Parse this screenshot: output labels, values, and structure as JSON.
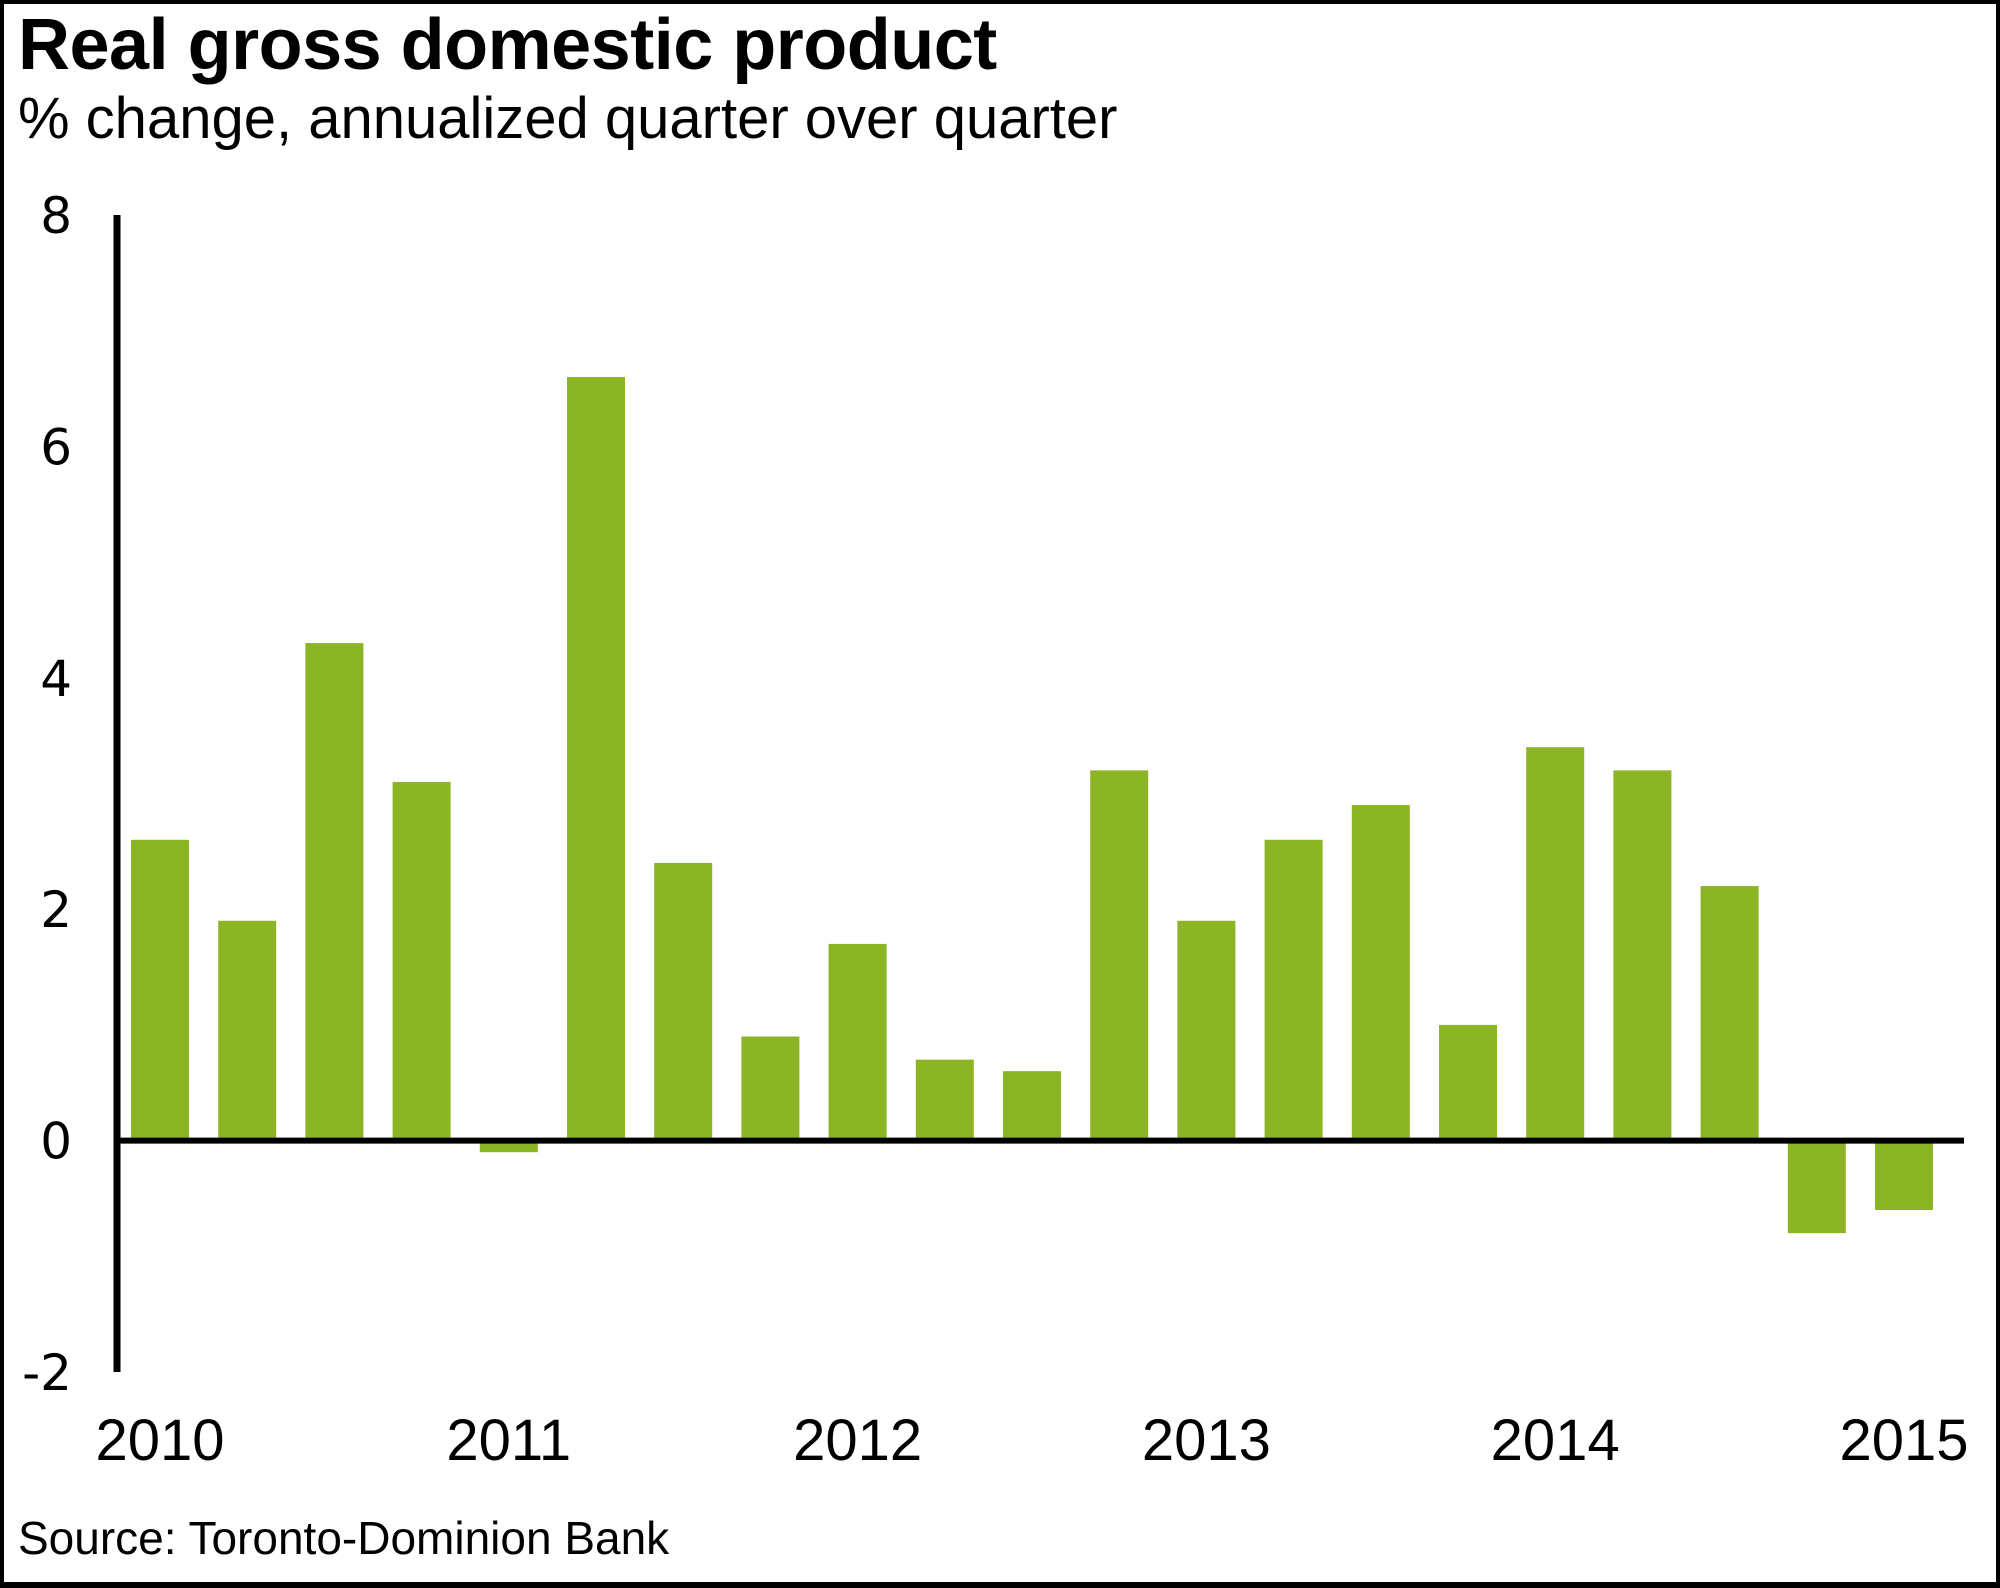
{
  "title": "Real gross domestic product",
  "subtitle": "% change, annualized quarter over quarter",
  "source": "Source: Toronto-Dominion Bank",
  "colors": {
    "bar": "#8bb524",
    "axis": "#000000"
  },
  "chart_data": {
    "type": "bar",
    "title": "Real gross domestic product",
    "subtitle": "% change, annualized quarter over quarter",
    "xlabel": "",
    "ylabel": "",
    "ylim": [
      -2,
      8
    ],
    "yticks": [
      8,
      6,
      4,
      2,
      0,
      -2
    ],
    "ytick_labels": [
      "8",
      "6",
      "4",
      "2",
      "0",
      "-2"
    ],
    "xtick_labels": [
      "2010",
      "2011",
      "2012",
      "2013",
      "2014",
      "2015"
    ],
    "xtick_positions": [
      0,
      4,
      8,
      12,
      16,
      20
    ],
    "grid": false,
    "legend": "none",
    "categories": [
      "2010 Q1",
      "2010 Q2",
      "2010 Q3",
      "2010 Q4",
      "2011 Q1",
      "2011 Q2",
      "2011 Q3",
      "2011 Q4",
      "2012 Q1",
      "2012 Q2",
      "2012 Q3",
      "2012 Q4",
      "2013 Q1",
      "2013 Q2",
      "2013 Q3",
      "2013 Q4",
      "2014 Q1",
      "2014 Q2",
      "2014 Q3",
      "2014 Q4",
      "2015 Q1"
    ],
    "values": [
      2.6,
      1.9,
      4.3,
      3.1,
      -0.1,
      6.6,
      2.4,
      0.9,
      1.7,
      0.7,
      0.6,
      3.2,
      1.9,
      2.6,
      2.9,
      1.0,
      3.4,
      3.2,
      2.2,
      -0.8,
      -0.6
    ]
  }
}
